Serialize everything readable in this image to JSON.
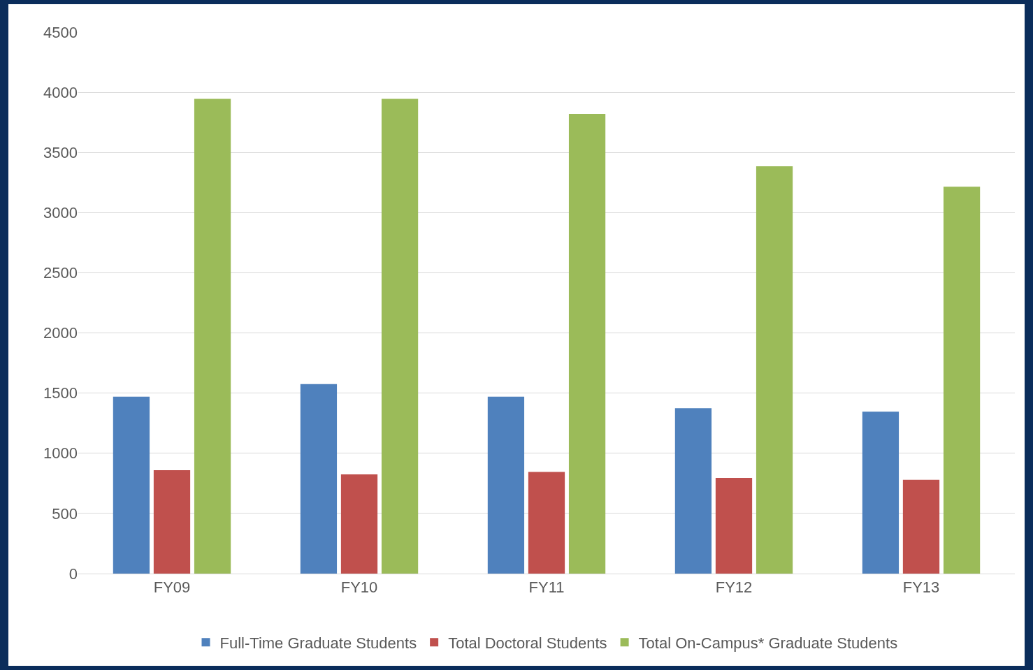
{
  "chart_data": {
    "type": "bar",
    "categories": [
      "FY09",
      "FY10",
      "FY11",
      "FY12",
      "FY13"
    ],
    "series": [
      {
        "name": "Full-Time Graduate Students",
        "color": "#4f81bd",
        "values": [
          1470,
          1575,
          1470,
          1375,
          1345
        ]
      },
      {
        "name": "Total Doctoral Students",
        "color": "#c0504d",
        "values": [
          860,
          825,
          845,
          795,
          780
        ]
      },
      {
        "name": "Total On-Campus* Graduate Students",
        "color": "#9bbb59",
        "values": [
          3945,
          3945,
          3820,
          3385,
          3215
        ]
      }
    ],
    "ylim": [
      0,
      4500
    ],
    "yticks": [
      0,
      500,
      1000,
      1500,
      2000,
      2500,
      3000,
      3500,
      4000,
      4500
    ],
    "grid": "y",
    "legend": "bottom"
  }
}
